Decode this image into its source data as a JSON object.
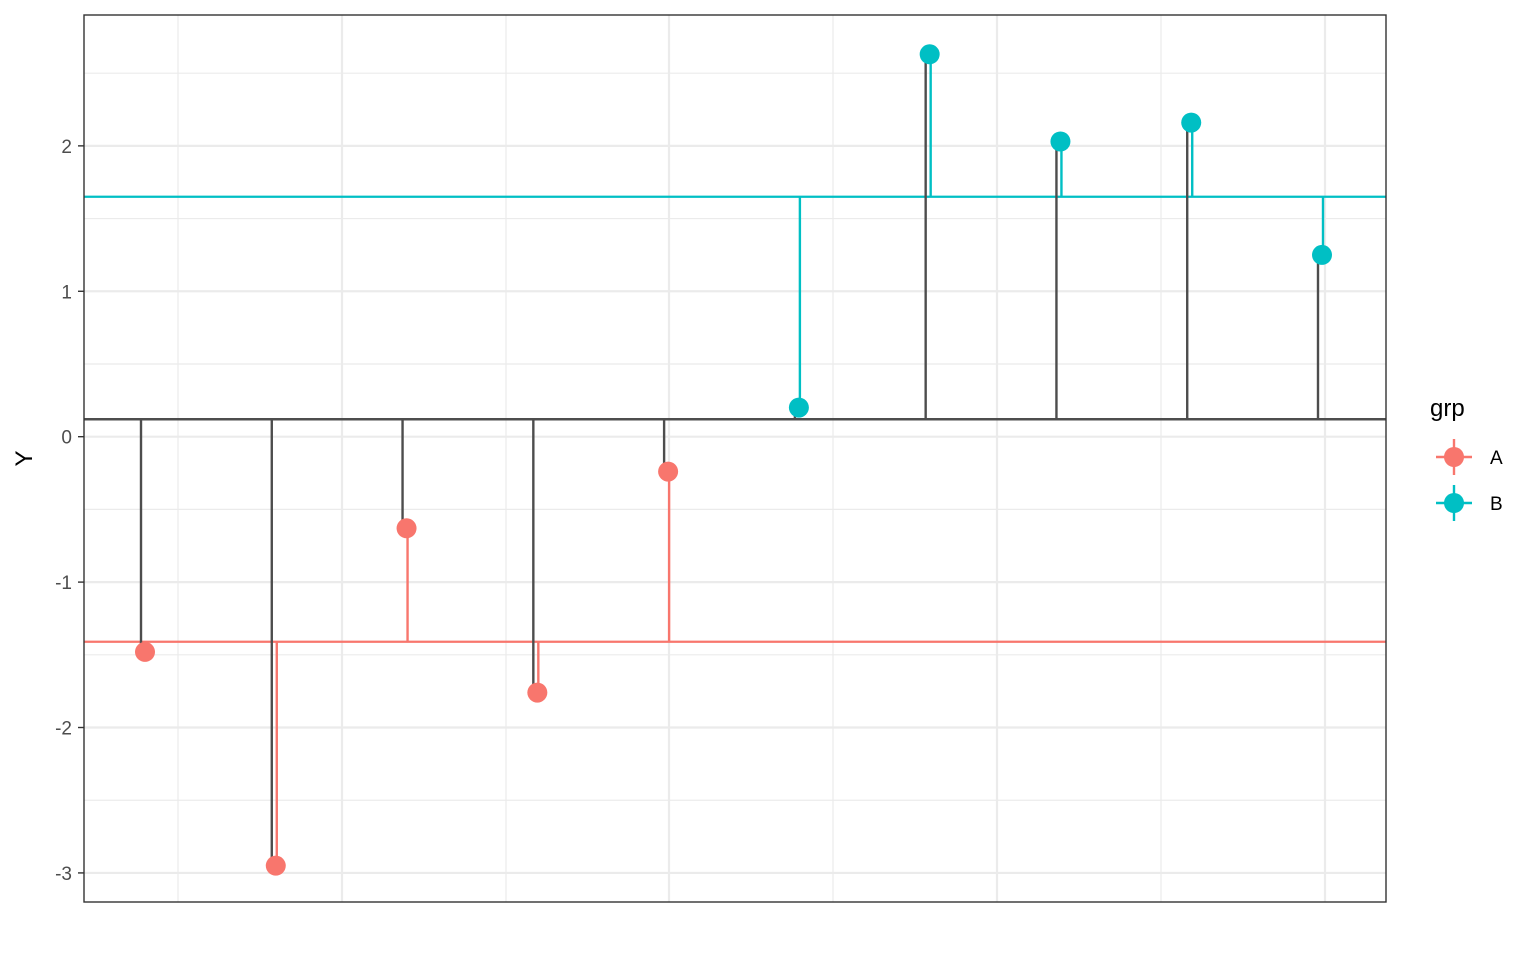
{
  "chart_data": {
    "type": "lollipop",
    "title": "",
    "xlabel": "",
    "ylabel": "Y",
    "ylim": [
      -3.2,
      2.9
    ],
    "yticks": [
      -3,
      -2,
      -1,
      0,
      1,
      2
    ],
    "ytick_labels": [
      "-3",
      "-2",
      "-1",
      "0",
      "1",
      "2"
    ],
    "grid": true,
    "overall_mean": 0.12,
    "legend": {
      "title": "grp",
      "placement": "right",
      "entries": [
        "A",
        "B"
      ]
    },
    "colors": {
      "A": "#F8766D",
      "B": "#00BFC4",
      "stem": "#4D4D4D",
      "grid": "#EBEBEB",
      "panel_border": "#333333"
    },
    "series": [
      {
        "name": "A",
        "group_mean": -1.41,
        "values": [
          -1.48,
          -2.95,
          -0.63,
          -1.76,
          -0.24
        ]
      },
      {
        "name": "B",
        "group_mean": 1.65,
        "values": [
          0.2,
          2.63,
          2.03,
          2.16,
          1.25
        ]
      }
    ]
  }
}
